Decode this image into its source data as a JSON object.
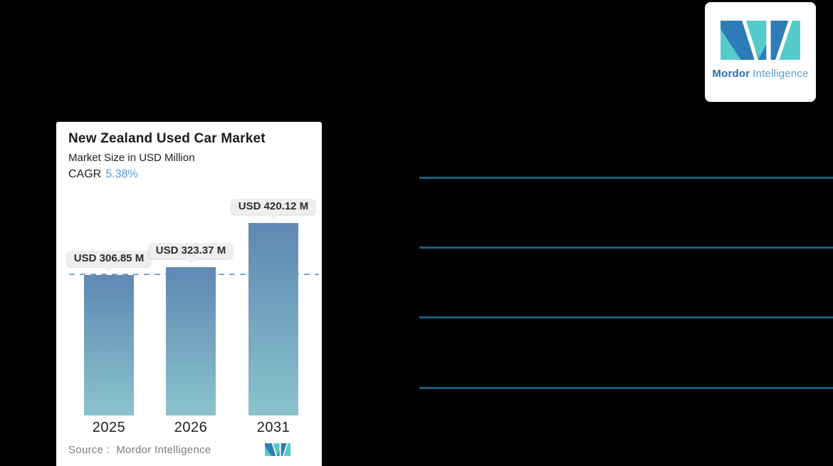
{
  "chart_card": {
    "title": "New Zealand Used Car Market",
    "subtitle": "Market Size in USD Million",
    "cagr_label": "CAGR",
    "cagr_value": "5.38%",
    "source_label": "Source :",
    "source_value": "Mordor Intelligence"
  },
  "chart_data": {
    "type": "bar",
    "title": "New Zealand Used Car Market",
    "subtitle": "Market Size in USD Million",
    "cagr": "5.38%",
    "unit": "USD Million",
    "categories": [
      "2025",
      "2026",
      "2031"
    ],
    "values": [
      306.85,
      323.37,
      420.12
    ],
    "value_labels": [
      "USD 306.85 M",
      "USD 323.37 M",
      "USD 420.12 M"
    ],
    "ylim": [
      0,
      420.12
    ],
    "grid": false,
    "legend": "none",
    "baseline": {
      "category": "2025",
      "value": 306.85,
      "style": "dashed"
    },
    "bar_gradient_top": "#5f88b3",
    "bar_gradient_bottom": "#8ac3cc",
    "dashed_line_color": "#7ba7cd"
  },
  "brand_card": {
    "brand_bold": "Mordor",
    "brand_light": "Intelligence",
    "logo_blue": "#2e7cb7",
    "logo_teal": "#53cbca"
  },
  "divider_lines": {
    "count": 4,
    "color": "#1e5d80"
  }
}
